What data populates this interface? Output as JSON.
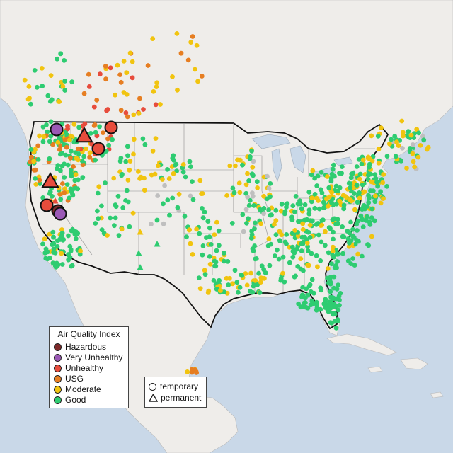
{
  "legend": {
    "title": "Air Quality Index",
    "categories": [
      {
        "label": "Hazardous",
        "color": "#7e2a2a"
      },
      {
        "label": "Very Unhealthy",
        "color": "#9b59b6"
      },
      {
        "label": "Unhealthy",
        "color": "#e74c3c"
      },
      {
        "label": "USG",
        "color": "#e67e22"
      },
      {
        "label": "Moderate",
        "color": "#f1c40f"
      },
      {
        "label": "Good",
        "color": "#2ecc71"
      }
    ]
  },
  "monitor_types": {
    "temporary_label": "temporary",
    "permanent_label": "permanent"
  },
  "colors": {
    "ocean": "#c9d8e8",
    "land": "#efedea",
    "no_data": "#bfbfbf"
  }
}
